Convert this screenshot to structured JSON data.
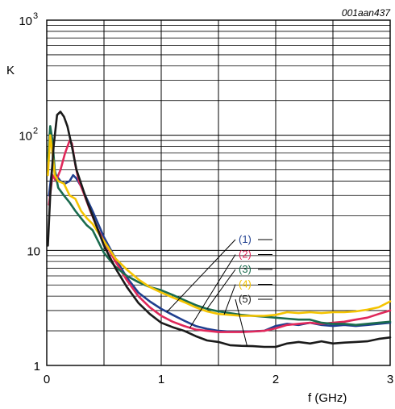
{
  "chart_data": {
    "type": "line",
    "reference": "001aan437",
    "ylabel": "K",
    "xlabel": "f (GHz)",
    "xlim": [
      0,
      3
    ],
    "ylim": [
      1,
      1000
    ],
    "yscale": "log",
    "xticks": [
      {
        "value": 0,
        "label": "0"
      },
      {
        "value": 1,
        "label": "1"
      },
      {
        "value": 2,
        "label": "2"
      },
      {
        "value": 3,
        "label": "3"
      }
    ],
    "yticks": [
      {
        "value": 1,
        "label": "1"
      },
      {
        "value": 10,
        "label": "10"
      },
      {
        "value": 100,
        "label": "10",
        "sup": "2"
      },
      {
        "value": 1000,
        "label": "10",
        "sup": "3"
      }
    ],
    "grid": true,
    "series": [
      {
        "name": "(1)",
        "color": "#1f3f8f",
        "x": [
          0.02,
          0.05,
          0.08,
          0.12,
          0.16,
          0.2,
          0.23,
          0.26,
          0.3,
          0.35,
          0.4,
          0.5,
          0.6,
          0.7,
          0.8,
          0.9,
          1.0,
          1.1,
          1.2,
          1.3,
          1.4,
          1.5,
          1.6,
          1.7,
          1.8,
          1.9,
          2.0,
          2.1,
          2.2,
          2.3,
          2.4,
          2.5,
          2.6,
          2.7,
          2.8,
          2.9,
          3.0
        ],
        "y": [
          30,
          55,
          45,
          40,
          38,
          40,
          45,
          42,
          36,
          28,
          22,
          13,
          8.5,
          5.8,
          4.3,
          3.6,
          3.1,
          2.75,
          2.45,
          2.2,
          2.08,
          2.0,
          1.97,
          1.97,
          1.98,
          2.0,
          2.2,
          2.3,
          2.25,
          2.35,
          2.25,
          2.2,
          2.25,
          2.2,
          2.25,
          2.3,
          2.35
        ]
      },
      {
        "name": "(2)",
        "color": "#e0285a",
        "x": [
          0.02,
          0.05,
          0.08,
          0.12,
          0.16,
          0.2,
          0.22,
          0.25,
          0.28,
          0.32,
          0.38,
          0.45,
          0.5,
          0.6,
          0.7,
          0.8,
          0.9,
          1.0,
          1.1,
          1.2,
          1.3,
          1.4,
          1.5,
          1.6,
          1.7,
          1.8,
          1.9,
          2.0,
          2.1,
          2.2,
          2.3,
          2.4,
          2.5,
          2.6,
          2.7,
          2.8,
          2.9,
          3.0
        ],
        "y": [
          25,
          45,
          40,
          50,
          70,
          90,
          85,
          55,
          40,
          32,
          22,
          15,
          12,
          8,
          5.5,
          4.0,
          3.2,
          2.7,
          2.4,
          2.2,
          2.05,
          2.0,
          1.95,
          1.95,
          1.95,
          1.97,
          2.0,
          2.1,
          2.25,
          2.3,
          2.35,
          2.3,
          2.35,
          2.4,
          2.5,
          2.6,
          2.8,
          3.0
        ]
      },
      {
        "name": "(3)",
        "color": "#1a6b4e",
        "x": [
          0.01,
          0.03,
          0.05,
          0.07,
          0.1,
          0.15,
          0.2,
          0.25,
          0.3,
          0.35,
          0.4,
          0.5,
          0.6,
          0.7,
          0.8,
          0.9,
          1.0,
          1.1,
          1.2,
          1.3,
          1.4,
          1.5,
          1.6,
          1.7,
          1.8,
          1.9,
          2.0,
          2.1,
          2.2,
          2.3,
          2.4,
          2.5,
          2.6,
          2.7,
          2.8,
          2.9,
          3.0
        ],
        "y": [
          60,
          120,
          90,
          50,
          35,
          30,
          26,
          22,
          19,
          16.5,
          15,
          9.5,
          7.2,
          6.0,
          5.3,
          4.8,
          4.5,
          4.1,
          3.7,
          3.35,
          3.1,
          2.95,
          2.85,
          2.75,
          2.7,
          2.65,
          2.6,
          2.55,
          2.5,
          2.5,
          2.35,
          2.3,
          2.3,
          2.25,
          2.3,
          2.35,
          2.4
        ]
      },
      {
        "name": "(4)",
        "color": "#f5c400",
        "x": [
          0.01,
          0.03,
          0.05,
          0.07,
          0.1,
          0.15,
          0.2,
          0.25,
          0.3,
          0.35,
          0.4,
          0.5,
          0.6,
          0.7,
          0.8,
          0.9,
          1.0,
          1.1,
          1.2,
          1.3,
          1.4,
          1.5,
          1.6,
          1.7,
          1.8,
          1.9,
          2.0,
          2.1,
          2.2,
          2.3,
          2.4,
          2.5,
          2.6,
          2.7,
          2.8,
          2.9,
          3.0
        ],
        "y": [
          45,
          100,
          70,
          45,
          40,
          38,
          30,
          28,
          22,
          19,
          17,
          12,
          8.5,
          6.8,
          5.6,
          4.8,
          4.3,
          3.9,
          3.55,
          3.2,
          2.95,
          2.8,
          2.75,
          2.7,
          2.7,
          2.7,
          2.75,
          2.9,
          2.85,
          2.9,
          2.85,
          2.9,
          2.9,
          2.95,
          3.05,
          3.2,
          3.6
        ]
      },
      {
        "name": "(5)",
        "color": "#1a1a1a",
        "x": [
          0.01,
          0.03,
          0.06,
          0.09,
          0.12,
          0.15,
          0.18,
          0.22,
          0.26,
          0.3,
          0.35,
          0.4,
          0.5,
          0.6,
          0.7,
          0.8,
          0.9,
          1.0,
          1.1,
          1.2,
          1.3,
          1.4,
          1.5,
          1.6,
          1.7,
          1.8,
          1.9,
          2.0,
          2.1,
          2.2,
          2.3,
          2.4,
          2.5,
          2.6,
          2.7,
          2.8,
          2.9,
          3.0
        ],
        "y": [
          11,
          30,
          80,
          150,
          160,
          145,
          120,
          80,
          50,
          38,
          27,
          20,
          11,
          7,
          4.8,
          3.5,
          2.8,
          2.35,
          2.15,
          2.0,
          1.8,
          1.65,
          1.6,
          1.5,
          1.48,
          1.47,
          1.45,
          1.45,
          1.55,
          1.6,
          1.55,
          1.62,
          1.55,
          1.58,
          1.6,
          1.62,
          1.7,
          1.75
        ]
      }
    ]
  }
}
